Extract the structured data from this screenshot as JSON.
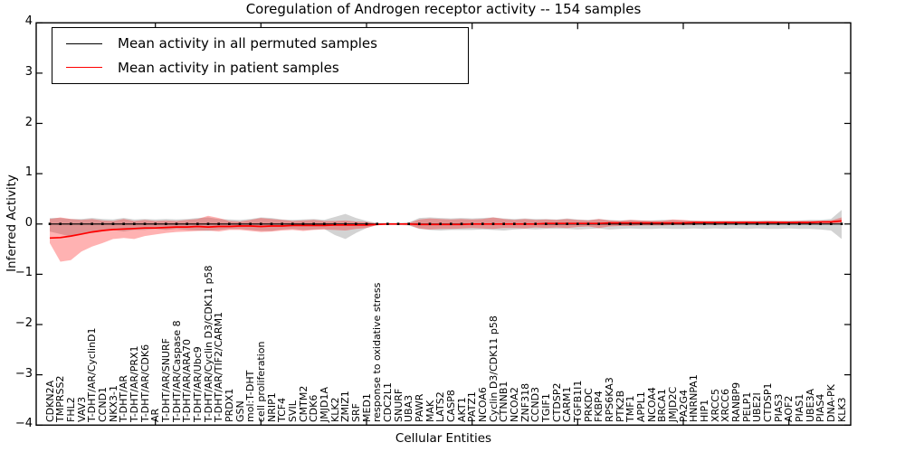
{
  "chart_data": {
    "type": "line",
    "title": "Coregulation of Androgen receptor activity -- 154 samples",
    "xlabel": "Cellular Entities",
    "ylabel": "Inferred Activity",
    "ylim": [
      -4,
      4
    ],
    "yticks": [
      -4,
      -3,
      -2,
      -1,
      0,
      1,
      2,
      3,
      4
    ],
    "xtick_interval": 10,
    "grid": false,
    "legend_position": "upper left",
    "background": "#ffffff",
    "note": "Both mean lines hug 0; shaded bands are visually-estimated std envelopes",
    "categories": [
      "CDKN2A",
      "TMPRSS2",
      "FHL2",
      "VAV3",
      "T-DHT/AR/CyclinD1",
      "CCND1",
      "NKX3-1",
      "T-DHT/AR",
      "T-DHT/AR/PRX1",
      "T-DHT/AR/CDK6",
      "AR",
      "T-DHT/AR/SNURF",
      "T-DHT/AR/Caspase 8",
      "T-DHT/AR/ARA70",
      "T-DHT/AR/Ubc9",
      "T-DHT/AR/Cyclin D3/CDK11 p58",
      "T-DHT/AR/TIF2/CARM1",
      "PRDX1",
      "GSN",
      "mol:T-DHT",
      "cell proliferation",
      "NRIP1",
      "TCF4",
      "SVIL",
      "CMTM2",
      "CDK6",
      "JMJD1A",
      "KLK2",
      "ZMIZ1",
      "SRF",
      "MED1",
      "response to oxidative stress",
      "CDC2L1",
      "SNURF",
      "UBA3",
      "PAWR",
      "MAK",
      "LATS2",
      "CASP8",
      "AKT1",
      "PATZ1",
      "NCOA6",
      "Cyclin D3/CDK11 p58",
      "CTNNB1",
      "NCOA2",
      "ZNF318",
      "CCND3",
      "TGIF1",
      "CTDSP2",
      "CARM1",
      "TGFB1I1",
      "PRKDC",
      "FKBP4",
      "RPS6KA3",
      "PTK2B",
      "TMF1",
      "APPL1",
      "NCOA4",
      "BRCA1",
      "JMJD2C",
      "PA2G4",
      "HNRNPA1",
      "HIP1",
      "XRCC5",
      "XRCC6",
      "RANBP9",
      "PELP1",
      "UBE2I",
      "CTDSP1",
      "PIAS3",
      "AOF2",
      "PIAS1",
      "UBE3A",
      "PIAS4",
      "DNA-PK",
      "KLK3"
    ],
    "series": [
      {
        "name": "Mean activity in all permuted samples",
        "color": "#000000",
        "marker": "square",
        "band_color": "rgba(128,128,128,0.35)",
        "values": [
          0,
          0,
          0,
          0,
          0,
          0,
          0,
          0,
          0,
          0,
          0,
          0,
          0,
          0,
          0,
          0,
          0,
          0,
          0,
          0,
          0,
          0,
          0,
          0,
          0,
          0,
          0,
          0,
          0,
          0,
          0,
          0,
          0,
          0,
          0,
          0,
          0,
          0,
          0,
          0,
          0,
          0,
          0,
          0,
          0,
          0,
          0,
          0,
          0,
          0,
          0,
          0,
          0,
          0,
          0,
          0,
          0,
          0,
          0,
          0,
          0,
          0,
          0,
          0,
          0,
          0,
          0,
          0,
          0,
          0,
          0,
          0,
          0,
          0,
          0,
          0
        ],
        "band_upper": [
          0.12,
          0.12,
          0.1,
          0.1,
          0.12,
          0.1,
          0.09,
          0.12,
          0.09,
          0.1,
          0.09,
          0.1,
          0.09,
          0.1,
          0.12,
          0.13,
          0.1,
          0.09,
          0.08,
          0.1,
          0.13,
          0.12,
          0.09,
          0.08,
          0.09,
          0.1,
          0.08,
          0.14,
          0.2,
          0.12,
          0.06,
          0.02,
          0.02,
          0.02,
          0.03,
          0.12,
          0.13,
          0.12,
          0.11,
          0.12,
          0.11,
          0.12,
          0.13,
          0.11,
          0.1,
          0.11,
          0.1,
          0.1,
          0.09,
          0.11,
          0.09,
          0.08,
          0.1,
          0.08,
          0.07,
          0.08,
          0.07,
          0.07,
          0.08,
          0.08,
          0.07,
          0.07,
          0.06,
          0.07,
          0.06,
          0.07,
          0.06,
          0.07,
          0.07,
          0.06,
          0.07,
          0.07,
          0.08,
          0.08,
          0.1,
          0.28
        ],
        "band_lower": [
          -0.15,
          -0.2,
          -0.25,
          -0.2,
          -0.18,
          -0.15,
          -0.12,
          -0.15,
          -0.12,
          -0.12,
          -0.1,
          -0.12,
          -0.1,
          -0.12,
          -0.13,
          -0.14,
          -0.12,
          -0.1,
          -0.1,
          -0.12,
          -0.14,
          -0.14,
          -0.11,
          -0.1,
          -0.12,
          -0.11,
          -0.1,
          -0.22,
          -0.3,
          -0.18,
          -0.08,
          -0.02,
          -0.02,
          -0.02,
          -0.03,
          -0.1,
          -0.12,
          -0.13,
          -0.12,
          -0.12,
          -0.12,
          -0.11,
          -0.12,
          -0.13,
          -0.11,
          -0.1,
          -0.11,
          -0.1,
          -0.1,
          -0.1,
          -0.11,
          -0.1,
          -0.09,
          -0.11,
          -0.1,
          -0.09,
          -0.1,
          -0.1,
          -0.09,
          -0.1,
          -0.1,
          -0.09,
          -0.1,
          -0.09,
          -0.1,
          -0.09,
          -0.1,
          -0.09,
          -0.1,
          -0.1,
          -0.09,
          -0.1,
          -0.1,
          -0.11,
          -0.13,
          -0.3
        ]
      },
      {
        "name": "Mean activity in patient samples",
        "color": "#ff0000",
        "marker": "none",
        "band_color": "rgba(255,0,0,0.30)",
        "values": [
          -0.28,
          -0.27,
          -0.24,
          -0.2,
          -0.16,
          -0.13,
          -0.11,
          -0.1,
          -0.09,
          -0.08,
          -0.08,
          -0.07,
          -0.06,
          -0.06,
          -0.05,
          -0.06,
          -0.05,
          -0.05,
          -0.04,
          -0.04,
          -0.05,
          -0.04,
          -0.04,
          -0.03,
          -0.03,
          -0.03,
          -0.03,
          -0.02,
          -0.02,
          -0.02,
          -0.02,
          -0.01,
          0.0,
          0.0,
          0.0,
          -0.01,
          -0.01,
          -0.01,
          -0.01,
          -0.01,
          0.0,
          0.0,
          0.0,
          0.0,
          0.0,
          0.0,
          0.0,
          0.01,
          0.01,
          0.01,
          0.01,
          0.01,
          0.01,
          0.02,
          0.02,
          0.02,
          0.02,
          0.02,
          0.02,
          0.02,
          0.02,
          0.03,
          0.03,
          0.03,
          0.03,
          0.03,
          0.03,
          0.03,
          0.03,
          0.03,
          0.03,
          0.03,
          0.03,
          0.04,
          0.04,
          0.06
        ],
        "band_upper": [
          0.1,
          0.13,
          0.1,
          0.08,
          0.1,
          0.07,
          0.06,
          0.1,
          0.06,
          0.08,
          0.06,
          0.07,
          0.06,
          0.08,
          0.1,
          0.16,
          0.12,
          0.06,
          0.05,
          0.08,
          0.12,
          0.1,
          0.08,
          0.06,
          0.07,
          0.08,
          0.06,
          0.06,
          0.07,
          0.05,
          0.04,
          0.01,
          0.01,
          0.01,
          0.02,
          0.09,
          0.11,
          0.1,
          0.09,
          0.1,
          0.09,
          0.1,
          0.13,
          0.1,
          0.08,
          0.1,
          0.08,
          0.09,
          0.08,
          0.1,
          0.08,
          0.07,
          0.1,
          0.07,
          0.06,
          0.08,
          0.07,
          0.06,
          0.06,
          0.09,
          0.08,
          0.06,
          0.06,
          0.05,
          0.06,
          0.05,
          0.06,
          0.05,
          0.06,
          0.06,
          0.05,
          0.06,
          0.06,
          0.06,
          0.07,
          0.13
        ],
        "band_lower": [
          -0.38,
          -0.75,
          -0.72,
          -0.55,
          -0.45,
          -0.38,
          -0.3,
          -0.28,
          -0.3,
          -0.24,
          -0.21,
          -0.18,
          -0.16,
          -0.15,
          -0.14,
          -0.13,
          -0.15,
          -0.12,
          -0.12,
          -0.14,
          -0.16,
          -0.15,
          -0.13,
          -0.12,
          -0.14,
          -0.12,
          -0.11,
          -0.12,
          -0.13,
          -0.1,
          -0.08,
          -0.02,
          -0.01,
          -0.01,
          -0.02,
          -0.09,
          -0.11,
          -0.1,
          -0.1,
          -0.09,
          -0.08,
          -0.09,
          -0.1,
          -0.08,
          -0.08,
          -0.09,
          -0.07,
          -0.08,
          -0.07,
          -0.08,
          -0.06,
          -0.05,
          -0.08,
          -0.05,
          -0.04,
          -0.04,
          -0.03,
          -0.03,
          -0.03,
          -0.02,
          -0.02,
          -0.02,
          -0.01,
          -0.02,
          -0.01,
          -0.01,
          -0.01,
          -0.01,
          -0.01,
          -0.01,
          -0.01,
          -0.01,
          -0.01,
          -0.01,
          0.0,
          0.02
        ]
      }
    ]
  }
}
